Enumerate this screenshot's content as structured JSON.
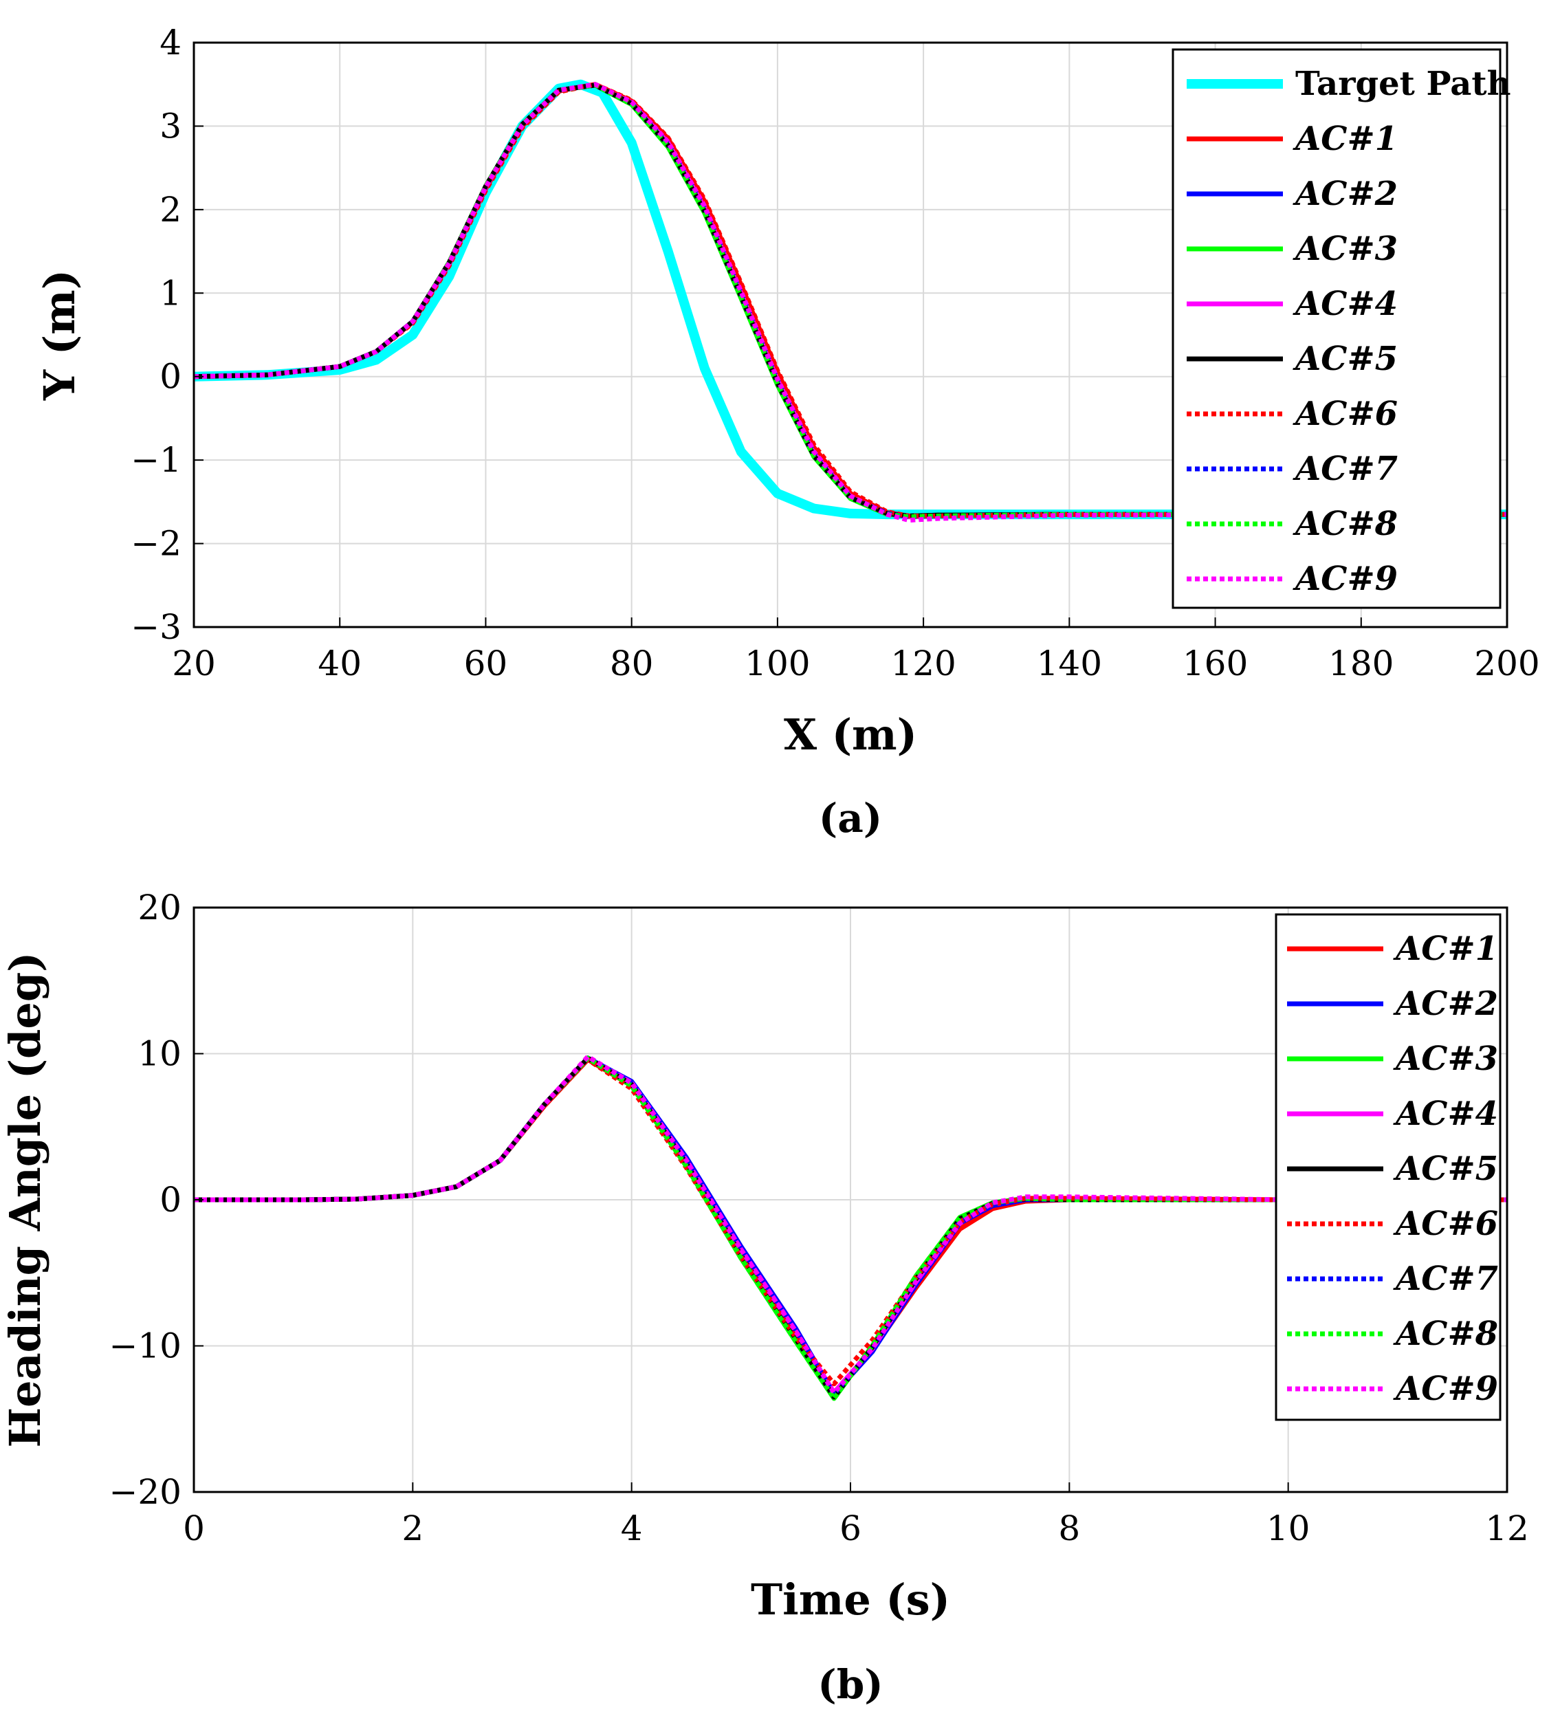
{
  "chart_data": [
    {
      "type": "line",
      "panel": "a",
      "caption": "(a)",
      "xlabel": "X (m)",
      "ylabel": "Y (m)",
      "xlim": [
        20,
        200
      ],
      "ylim": [
        -3,
        4
      ],
      "xticks": [
        "20",
        "40",
        "60",
        "80",
        "100",
        "120",
        "140",
        "160",
        "180",
        "200"
      ],
      "yticks": [
        "−3",
        "−2",
        "−1",
        "0",
        "1",
        "2",
        "3",
        "4"
      ],
      "grid": true,
      "legend_position": "top-right",
      "series": [
        {
          "name": "Target Path",
          "color": "#00ffff",
          "style": "solid",
          "width": 14,
          "x": [
            20,
            30,
            40,
            45,
            50,
            55,
            60,
            65,
            70,
            73,
            76,
            80,
            85,
            90,
            95,
            100,
            105,
            110,
            115,
            120,
            140,
            160,
            200
          ],
          "y": [
            0,
            0.02,
            0.08,
            0.2,
            0.5,
            1.2,
            2.2,
            3.0,
            3.45,
            3.5,
            3.4,
            2.8,
            1.5,
            0.1,
            -0.9,
            -1.4,
            -1.58,
            -1.64,
            -1.65,
            -1.65,
            -1.65,
            -1.65,
            -1.65
          ]
        },
        {
          "name": "AC#1",
          "color": "#ff0000",
          "style": "solid",
          "width": 7,
          "x": [
            20,
            30,
            40,
            45,
            50,
            55,
            60,
            65,
            70,
            75,
            80,
            85,
            90,
            95,
            100,
            105,
            110,
            115,
            118,
            122,
            140,
            200
          ],
          "y": [
            0,
            0.02,
            0.12,
            0.3,
            0.65,
            1.35,
            2.25,
            3.0,
            3.42,
            3.5,
            3.3,
            2.85,
            2.1,
            1.1,
            0.05,
            -0.85,
            -1.4,
            -1.63,
            -1.67,
            -1.66,
            -1.65,
            -1.65
          ]
        },
        {
          "name": "AC#2",
          "color": "#0000ff",
          "style": "solid",
          "width": 7,
          "x": [
            20,
            30,
            40,
            45,
            50,
            55,
            60,
            65,
            70,
            75,
            80,
            85,
            90,
            95,
            100,
            105,
            110,
            115,
            118,
            122,
            140,
            200
          ],
          "y": [
            0,
            0.02,
            0.12,
            0.3,
            0.66,
            1.36,
            2.27,
            3.02,
            3.43,
            3.49,
            3.27,
            2.78,
            2.0,
            0.98,
            -0.06,
            -0.93,
            -1.44,
            -1.64,
            -1.67,
            -1.66,
            -1.65,
            -1.65
          ]
        },
        {
          "name": "AC#3",
          "color": "#00ff00",
          "style": "solid",
          "width": 7,
          "x": [
            20,
            30,
            40,
            45,
            50,
            55,
            60,
            65,
            70,
            75,
            80,
            85,
            90,
            95,
            100,
            105,
            110,
            115,
            118,
            122,
            140,
            200
          ],
          "y": [
            0,
            0.02,
            0.12,
            0.3,
            0.66,
            1.37,
            2.28,
            3.02,
            3.43,
            3.49,
            3.26,
            2.75,
            1.96,
            0.94,
            -0.1,
            -0.96,
            -1.46,
            -1.65,
            -1.67,
            -1.66,
            -1.65,
            -1.65
          ]
        },
        {
          "name": "AC#4",
          "color": "#ff00ff",
          "style": "solid",
          "width": 7,
          "x": [
            20,
            30,
            40,
            45,
            50,
            55,
            60,
            65,
            70,
            75,
            80,
            85,
            90,
            95,
            100,
            105,
            110,
            115,
            118,
            122,
            140,
            200
          ],
          "y": [
            0,
            0.02,
            0.12,
            0.3,
            0.66,
            1.36,
            2.27,
            3.02,
            3.43,
            3.49,
            3.28,
            2.8,
            2.02,
            1.0,
            -0.04,
            -0.92,
            -1.44,
            -1.64,
            -1.68,
            -1.67,
            -1.65,
            -1.65
          ]
        },
        {
          "name": "AC#5",
          "color": "#000000",
          "style": "solid",
          "width": 7,
          "x": [
            20,
            30,
            40,
            45,
            50,
            55,
            60,
            65,
            70,
            75,
            80,
            85,
            90,
            95,
            100,
            105,
            110,
            115,
            118,
            122,
            140,
            200
          ],
          "y": [
            0,
            0.02,
            0.12,
            0.3,
            0.66,
            1.37,
            2.28,
            3.02,
            3.43,
            3.49,
            3.27,
            2.77,
            1.98,
            0.96,
            -0.08,
            -0.95,
            -1.45,
            -1.64,
            -1.67,
            -1.66,
            -1.65,
            -1.65
          ]
        },
        {
          "name": "AC#6",
          "color": "#ff0000",
          "style": "dotted",
          "width": 7,
          "x": [
            20,
            30,
            40,
            45,
            50,
            55,
            60,
            65,
            70,
            75,
            80,
            85,
            90,
            95,
            100,
            105,
            110,
            115,
            118,
            122,
            140,
            200
          ],
          "y": [
            0,
            0.02,
            0.12,
            0.3,
            0.64,
            1.33,
            2.23,
            2.98,
            3.41,
            3.5,
            3.31,
            2.86,
            2.12,
            1.12,
            0.07,
            -0.82,
            -1.38,
            -1.62,
            -1.67,
            -1.67,
            -1.65,
            -1.65
          ]
        },
        {
          "name": "AC#7",
          "color": "#0000ff",
          "style": "dotted",
          "width": 7,
          "x": [
            20,
            30,
            40,
            45,
            50,
            55,
            60,
            65,
            70,
            75,
            80,
            85,
            90,
            95,
            100,
            105,
            110,
            115,
            118,
            122,
            140,
            200
          ],
          "y": [
            0,
            0.02,
            0.12,
            0.3,
            0.66,
            1.36,
            2.27,
            3.02,
            3.43,
            3.49,
            3.28,
            2.79,
            2.02,
            1.0,
            -0.04,
            -0.92,
            -1.44,
            -1.64,
            -1.68,
            -1.67,
            -1.65,
            -1.65
          ]
        },
        {
          "name": "AC#8",
          "color": "#00ff00",
          "style": "dotted",
          "width": 7,
          "x": [
            20,
            30,
            40,
            45,
            50,
            55,
            60,
            65,
            70,
            75,
            80,
            85,
            90,
            95,
            100,
            105,
            110,
            115,
            118,
            122,
            140,
            200
          ],
          "y": [
            0,
            0.02,
            0.12,
            0.3,
            0.66,
            1.37,
            2.28,
            3.02,
            3.43,
            3.49,
            3.26,
            2.76,
            1.97,
            0.95,
            -0.09,
            -0.96,
            -1.46,
            -1.65,
            -1.68,
            -1.67,
            -1.65,
            -1.65
          ]
        },
        {
          "name": "AC#9",
          "color": "#ff00ff",
          "style": "dotted",
          "width": 7,
          "x": [
            20,
            30,
            40,
            45,
            50,
            55,
            60,
            65,
            70,
            75,
            80,
            85,
            90,
            95,
            100,
            105,
            110,
            115,
            118,
            122,
            140,
            200
          ],
          "y": [
            0,
            0.02,
            0.12,
            0.3,
            0.66,
            1.36,
            2.27,
            3.01,
            3.43,
            3.5,
            3.29,
            2.81,
            2.04,
            1.02,
            -0.03,
            -0.9,
            -1.43,
            -1.65,
            -1.72,
            -1.7,
            -1.66,
            -1.65
          ]
        }
      ]
    },
    {
      "type": "line",
      "panel": "b",
      "caption": "(b)",
      "xlabel": "Time (s)",
      "ylabel": "Heading Angle (deg)",
      "xlim": [
        0,
        12
      ],
      "ylim": [
        -20,
        20
      ],
      "xticks": [
        "0",
        "2",
        "4",
        "6",
        "8",
        "10",
        "12"
      ],
      "yticks": [
        "−20",
        "−10",
        "0",
        "10",
        "20"
      ],
      "grid": true,
      "legend_position": "top-right",
      "series": [
        {
          "name": "AC#1",
          "color": "#ff0000",
          "style": "solid",
          "width": 7,
          "x": [
            0,
            1,
            1.5,
            2,
            2.4,
            2.8,
            3.2,
            3.6,
            4.0,
            4.5,
            5.0,
            5.5,
            5.85,
            6.2,
            6.6,
            7.0,
            7.3,
            7.6,
            8,
            10,
            12
          ],
          "y": [
            0,
            0,
            0.05,
            0.3,
            0.9,
            2.7,
            6.4,
            9.6,
            7.8,
            2.5,
            -3.6,
            -9.2,
            -13.2,
            -10.3,
            -6.0,
            -2.0,
            -0.6,
            -0.1,
            0,
            0,
            0
          ]
        },
        {
          "name": "AC#2",
          "color": "#0000ff",
          "style": "solid",
          "width": 7,
          "x": [
            0,
            1,
            1.5,
            2,
            2.4,
            2.8,
            3.2,
            3.6,
            4.0,
            4.5,
            5.0,
            5.5,
            5.85,
            6.2,
            6.6,
            7.0,
            7.3,
            7.6,
            8,
            10,
            12
          ],
          "y": [
            0,
            0,
            0.05,
            0.3,
            0.9,
            2.7,
            6.5,
            9.7,
            8.1,
            2.9,
            -3.2,
            -8.8,
            -13.3,
            -10.4,
            -5.8,
            -1.6,
            -0.4,
            0,
            0,
            0,
            0
          ]
        },
        {
          "name": "AC#3",
          "color": "#00ff00",
          "style": "solid",
          "width": 7,
          "x": [
            0,
            1,
            1.5,
            2,
            2.4,
            2.8,
            3.2,
            3.6,
            4.0,
            4.5,
            5.0,
            5.5,
            5.85,
            6.2,
            6.6,
            7.0,
            7.3,
            7.6,
            8,
            10,
            12
          ],
          "y": [
            0,
            0,
            0.05,
            0.3,
            0.9,
            2.7,
            6.5,
            9.7,
            7.8,
            2.3,
            -4.0,
            -9.7,
            -13.6,
            -10.0,
            -5.2,
            -1.2,
            -0.2,
            0.1,
            0,
            0,
            0
          ]
        },
        {
          "name": "AC#4",
          "color": "#ff00ff",
          "style": "solid",
          "width": 7,
          "x": [
            0,
            1,
            1.5,
            2,
            2.4,
            2.8,
            3.2,
            3.6,
            4.0,
            4.5,
            5.0,
            5.5,
            5.85,
            6.2,
            6.6,
            7.0,
            7.3,
            7.6,
            8,
            10,
            12
          ],
          "y": [
            0,
            0,
            0.05,
            0.3,
            0.9,
            2.7,
            6.5,
            9.7,
            8.0,
            2.7,
            -3.4,
            -9.0,
            -13.2,
            -10.2,
            -5.6,
            -1.5,
            -0.3,
            0.05,
            0,
            0,
            0
          ]
        },
        {
          "name": "AC#5",
          "color": "#000000",
          "style": "solid",
          "width": 7,
          "x": [
            0,
            1,
            1.5,
            2,
            2.4,
            2.8,
            3.2,
            3.6,
            4.0,
            4.5,
            5.0,
            5.5,
            5.85,
            6.2,
            6.6,
            7.0,
            7.3,
            7.6,
            8,
            10,
            12
          ],
          "y": [
            0,
            0,
            0.05,
            0.3,
            0.9,
            2.7,
            6.5,
            9.7,
            7.9,
            2.5,
            -3.8,
            -9.5,
            -13.5,
            -10.1,
            -5.4,
            -1.3,
            -0.25,
            0.05,
            0,
            0,
            0
          ]
        },
        {
          "name": "AC#6",
          "color": "#ff0000",
          "style": "dotted",
          "width": 7,
          "x": [
            0,
            1,
            1.5,
            2,
            2.4,
            2.8,
            3.2,
            3.6,
            4.0,
            4.5,
            5.0,
            5.5,
            5.85,
            6.2,
            6.6,
            7.0,
            7.3,
            7.6,
            8,
            10,
            12
          ],
          "y": [
            0,
            0,
            0.05,
            0.3,
            0.9,
            2.7,
            6.4,
            9.6,
            7.6,
            2.2,
            -3.9,
            -9.4,
            -12.6,
            -9.6,
            -5.3,
            -1.5,
            -0.3,
            0.1,
            0.1,
            0,
            0
          ]
        },
        {
          "name": "AC#7",
          "color": "#0000ff",
          "style": "dotted",
          "width": 7,
          "x": [
            0,
            1,
            1.5,
            2,
            2.4,
            2.8,
            3.2,
            3.6,
            4.0,
            4.5,
            5.0,
            5.5,
            5.85,
            6.2,
            6.6,
            7.0,
            7.3,
            7.6,
            8,
            10,
            12
          ],
          "y": [
            0,
            0,
            0.05,
            0.3,
            0.9,
            2.7,
            6.5,
            9.7,
            8.0,
            2.8,
            -3.3,
            -8.9,
            -13.3,
            -10.3,
            -5.7,
            -1.5,
            -0.3,
            0.05,
            0,
            0,
            0
          ]
        },
        {
          "name": "AC#8",
          "color": "#00ff00",
          "style": "dotted",
          "width": 7,
          "x": [
            0,
            1,
            1.5,
            2,
            2.4,
            2.8,
            3.2,
            3.6,
            4.0,
            4.5,
            5.0,
            5.5,
            5.85,
            6.2,
            6.6,
            7.0,
            7.3,
            7.6,
            8,
            10,
            12
          ],
          "y": [
            0,
            0,
            0.05,
            0.3,
            0.9,
            2.7,
            6.5,
            9.7,
            7.8,
            2.3,
            -4.0,
            -9.7,
            -13.6,
            -10.0,
            -5.2,
            -1.2,
            -0.2,
            0.1,
            0,
            0,
            0
          ]
        },
        {
          "name": "AC#9",
          "color": "#ff00ff",
          "style": "dotted",
          "width": 7,
          "x": [
            0,
            1,
            1.5,
            2,
            2.4,
            2.8,
            3.2,
            3.6,
            4.0,
            4.5,
            5.0,
            5.5,
            5.85,
            6.2,
            6.6,
            7.0,
            7.3,
            7.6,
            8,
            10,
            12
          ],
          "y": [
            0,
            0,
            0.05,
            0.3,
            0.9,
            2.7,
            6.5,
            9.8,
            8.0,
            2.7,
            -3.4,
            -9.0,
            -13.2,
            -10.2,
            -5.6,
            -1.6,
            -0.2,
            0.2,
            0.2,
            0,
            0
          ]
        }
      ]
    }
  ]
}
